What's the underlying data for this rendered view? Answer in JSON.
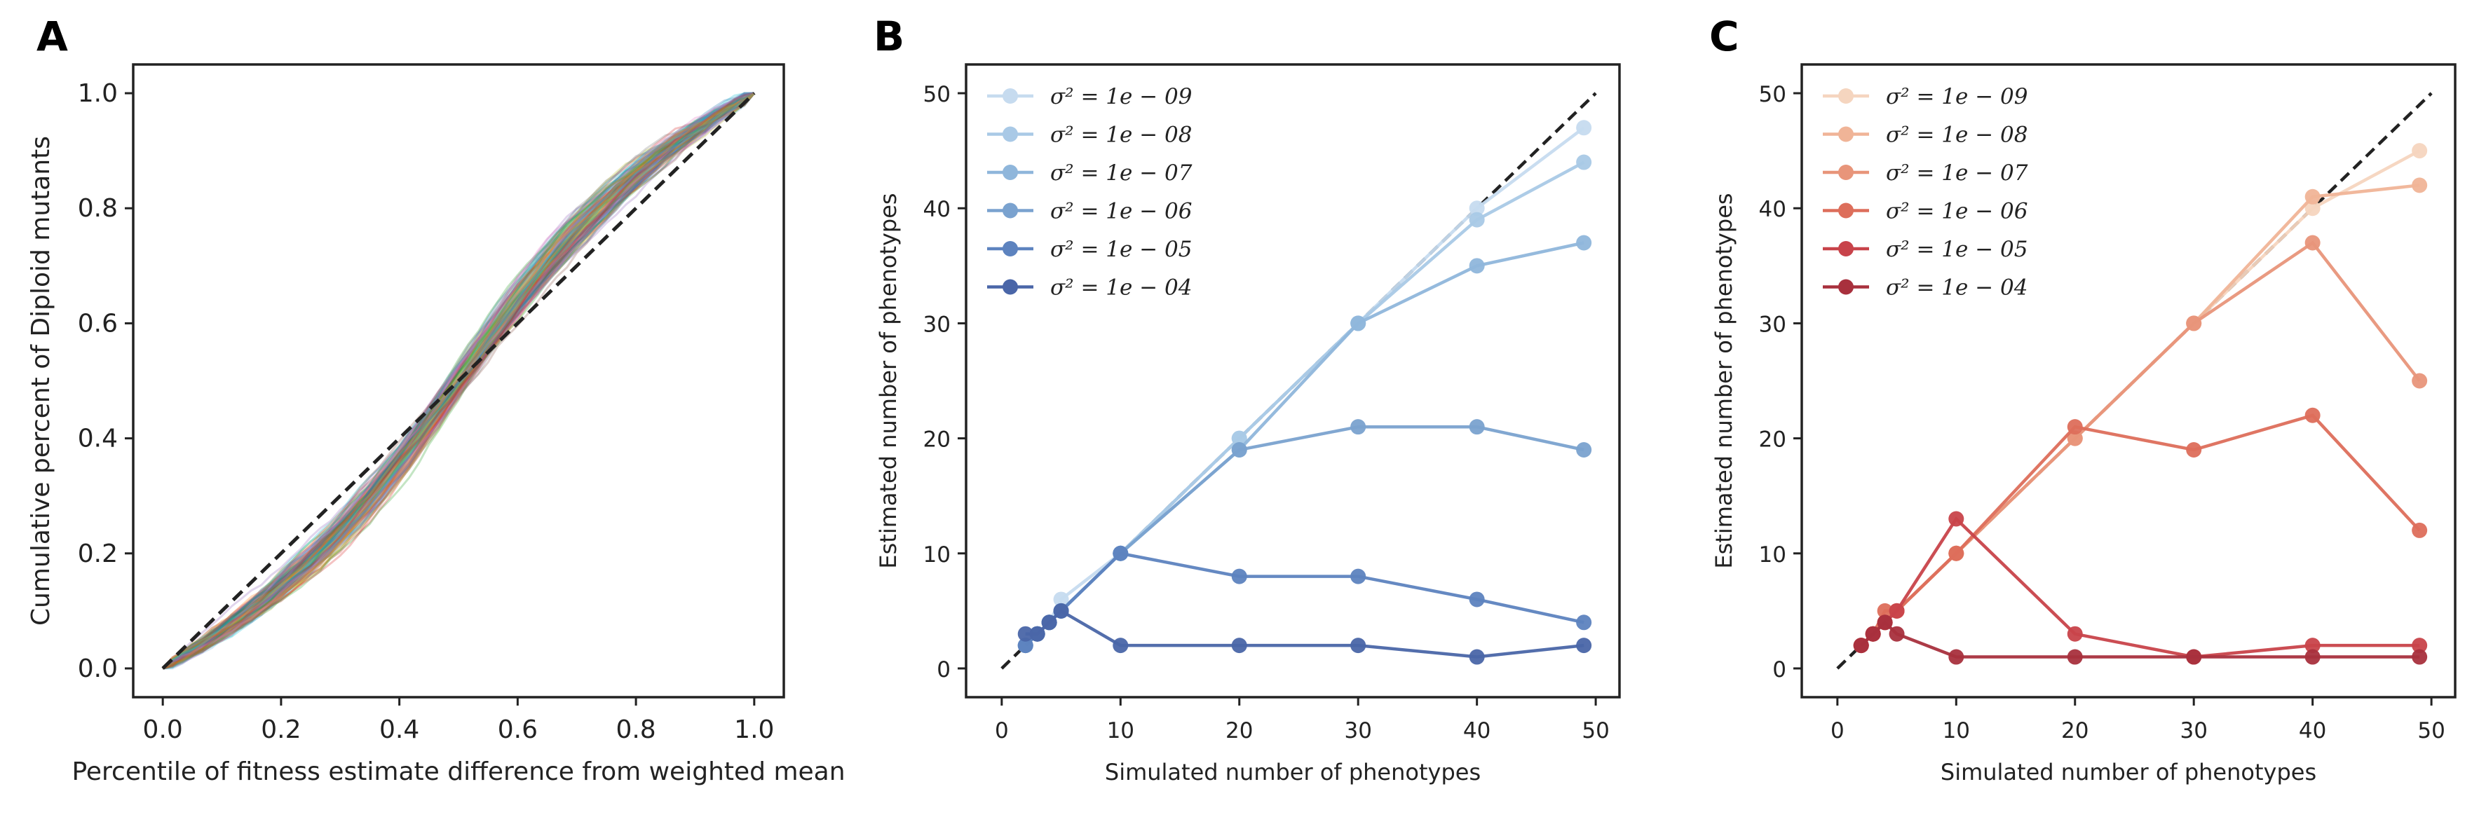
{
  "panels": {
    "A": {
      "letter": "A"
    },
    "B": {
      "letter": "B"
    },
    "C": {
      "letter": "C"
    }
  },
  "chart_data": [
    {
      "type": "line",
      "panel": "A",
      "title": "",
      "xlabel": "Percentile of fitness estimate difference from weighted mean",
      "ylabel": "Cumulative percent of Diploid mutants",
      "xlim": [
        -0.05,
        1.05
      ],
      "ylim": [
        -0.05,
        1.05
      ],
      "xticks": [
        0.0,
        0.2,
        0.4,
        0.6,
        0.8,
        1.0
      ],
      "yticks": [
        0.0,
        0.2,
        0.4,
        0.6,
        0.8,
        1.0
      ],
      "xtick_labels": [
        "0.0",
        "0.2",
        "0.4",
        "0.6",
        "0.8",
        "1.0"
      ],
      "ytick_labels": [
        "0.0",
        "0.2",
        "0.4",
        "0.6",
        "0.8",
        "1.0"
      ],
      "grid": false,
      "reference_line": {
        "x": [
          0,
          1
        ],
        "y": [
          0,
          1
        ],
        "style": "dashed",
        "color": "#222222"
      },
      "colors": [
        "#6baed6",
        "#e377c2",
        "#bcbd22",
        "#2ca02c",
        "#d62728",
        "#9467bd",
        "#8c564b",
        "#17becf",
        "#ff7f0e",
        "#7f7f7f",
        "#1f77b4"
      ],
      "bundle": {
        "count": 130,
        "steepness_range": [
          1.6,
          2.8
        ],
        "mid_range": [
          0.47,
          0.53
        ],
        "opacity": 0.28
      }
    },
    {
      "type": "line",
      "panel": "B",
      "title": "",
      "xlabel": "Simulated number of phenotypes",
      "ylabel": "Estimated number of phenotypes",
      "xlim": [
        -3,
        52
      ],
      "ylim": [
        -2.5,
        52.5
      ],
      "xticks": [
        0,
        10,
        20,
        30,
        40,
        50
      ],
      "yticks": [
        0,
        10,
        20,
        30,
        40,
        50
      ],
      "xtick_labels": [
        "0",
        "10",
        "20",
        "30",
        "40",
        "50"
      ],
      "ytick_labels": [
        "0",
        "10",
        "20",
        "30",
        "40",
        "50"
      ],
      "grid": false,
      "legend_position": "top-left",
      "reference_line": {
        "x": [
          0,
          50
        ],
        "y": [
          0,
          50
        ],
        "style": "dashed",
        "color": "#222222"
      },
      "x": [
        2,
        3,
        4,
        5,
        10,
        20,
        30,
        40,
        49
      ],
      "series": [
        {
          "name": "σ² = 1e − 09",
          "color": "#c6dbef",
          "values": [
            2,
            3,
            4,
            6,
            10,
            20,
            30,
            40,
            47
          ]
        },
        {
          "name": "σ² = 1e − 08",
          "color": "#a9c9e6",
          "values": [
            2,
            3,
            4,
            5,
            10,
            20,
            30,
            39,
            44
          ]
        },
        {
          "name": "σ² = 1e − 07",
          "color": "#8fb6db",
          "values": [
            2,
            3,
            4,
            5,
            10,
            19,
            30,
            35,
            37
          ]
        },
        {
          "name": "σ² = 1e − 06",
          "color": "#7aa2cf",
          "values": [
            2,
            3,
            4,
            5,
            10,
            19,
            21,
            21,
            19
          ]
        },
        {
          "name": "σ² = 1e − 05",
          "color": "#5d83bf",
          "values": [
            2,
            3,
            4,
            5,
            10,
            8,
            8,
            6,
            4
          ]
        },
        {
          "name": "σ² = 1e − 04",
          "color": "#4a66a8",
          "values": [
            3,
            3,
            4,
            5,
            2,
            2,
            2,
            1,
            2
          ]
        }
      ]
    },
    {
      "type": "line",
      "panel": "C",
      "title": "",
      "xlabel": "Simulated number of phenotypes",
      "ylabel": "Estimated number of phenotypes",
      "xlim": [
        -3,
        52
      ],
      "ylim": [
        -2.5,
        52.5
      ],
      "xticks": [
        0,
        10,
        20,
        30,
        40,
        50
      ],
      "yticks": [
        0,
        10,
        20,
        30,
        40,
        50
      ],
      "xtick_labels": [
        "0",
        "10",
        "20",
        "30",
        "40",
        "50"
      ],
      "ytick_labels": [
        "0",
        "10",
        "20",
        "30",
        "40",
        "50"
      ],
      "grid": false,
      "legend_position": "top-left",
      "reference_line": {
        "x": [
          0,
          50
        ],
        "y": [
          0,
          50
        ],
        "style": "dashed",
        "color": "#222222"
      },
      "x": [
        2,
        3,
        4,
        5,
        10,
        20,
        30,
        40,
        49
      ],
      "series": [
        {
          "name": "σ² = 1e − 09",
          "color": "#f5d5bf",
          "values": [
            2,
            3,
            4,
            5,
            10,
            20,
            30,
            40,
            45
          ]
        },
        {
          "name": "σ² = 1e − 08",
          "color": "#f0b497",
          "values": [
            2,
            3,
            4,
            5,
            10,
            20,
            30,
            41,
            42
          ]
        },
        {
          "name": "σ² = 1e − 07",
          "color": "#e8957a",
          "values": [
            2,
            3,
            4,
            5,
            10,
            20,
            30,
            37,
            25
          ]
        },
        {
          "name": "σ² = 1e − 06",
          "color": "#dd6e5b",
          "values": [
            2,
            3,
            5,
            5,
            10,
            21,
            19,
            22,
            12
          ]
        },
        {
          "name": "σ² = 1e − 05",
          "color": "#c8434a",
          "values": [
            2,
            3,
            4,
            5,
            13,
            3,
            1,
            2,
            2
          ]
        },
        {
          "name": "σ² = 1e − 04",
          "color": "#a8303d",
          "values": [
            2,
            3,
            4,
            3,
            1,
            1,
            1,
            1,
            1
          ]
        }
      ]
    }
  ]
}
